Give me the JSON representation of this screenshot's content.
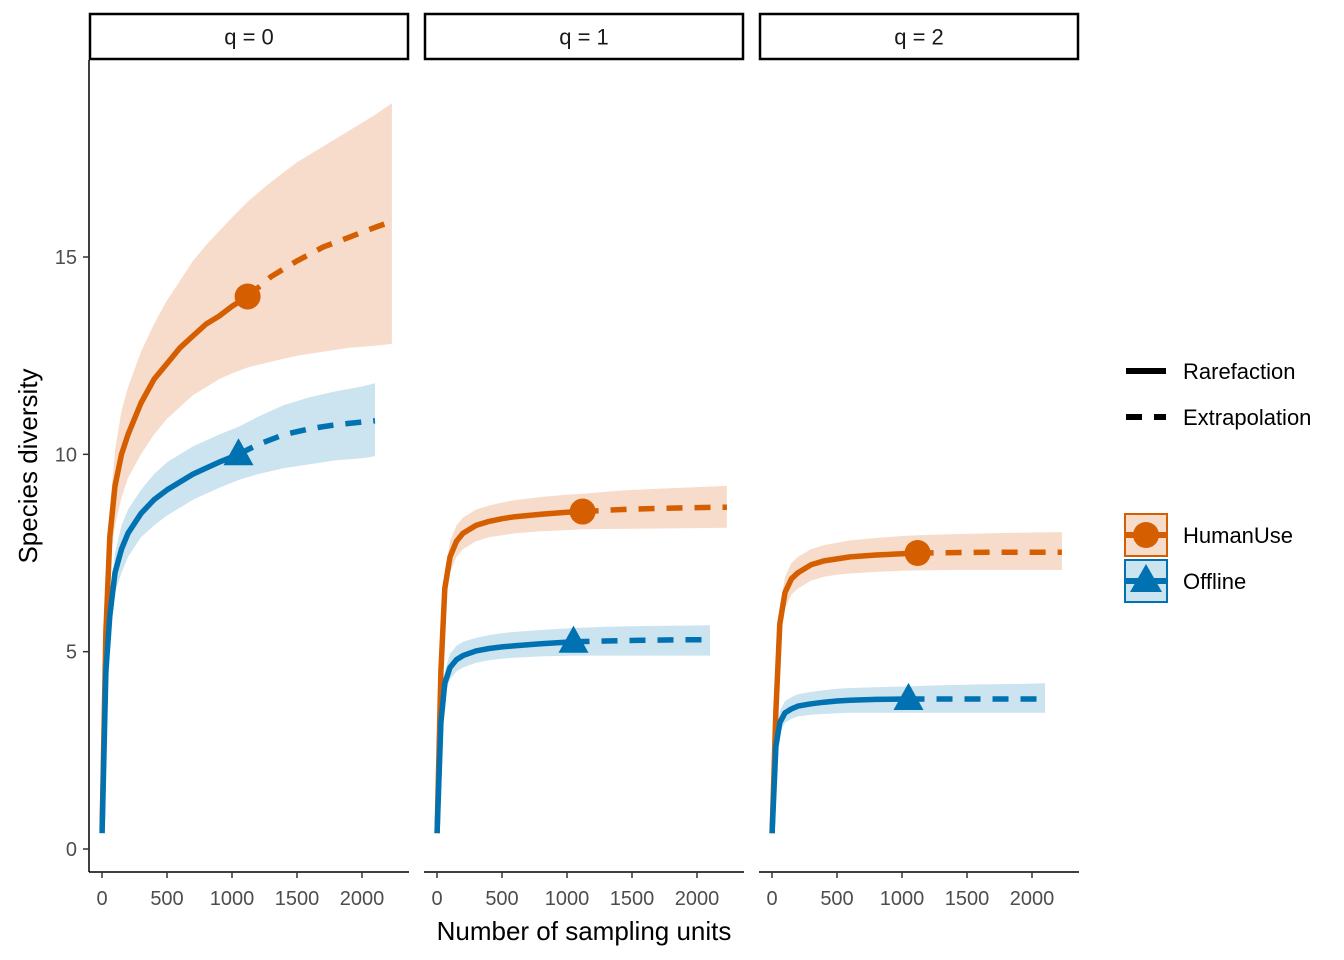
{
  "chart_data": {
    "type": "line",
    "xlabel": "Number of sampling units",
    "ylabel": "Species diversity",
    "xlim": [
      -100,
      2230
    ],
    "ylim": [
      -0.6,
      19.9
    ],
    "x_ticks": [
      0,
      500,
      1000,
      1500,
      2000
    ],
    "y_ticks": [
      0,
      5,
      10,
      15
    ],
    "grid": false,
    "legend_linetype": [
      {
        "label": "Rarefaction",
        "style": "solid"
      },
      {
        "label": "Extrapolation",
        "style": "dashed"
      }
    ],
    "legend_group": [
      {
        "label": "HumanUse",
        "color": "#D55E00",
        "marker": "circle"
      },
      {
        "label": "Offline",
        "color": "#0072B2",
        "marker": "triangle"
      }
    ],
    "colors": {
      "HumanUse": "#D55E00",
      "Offline": "#0072B2"
    },
    "ribbon_colors": {
      "HumanUse": "#F7DCCB",
      "Offline": "#CCE3F0"
    },
    "panels": [
      {
        "title": "q = 0",
        "series": [
          {
            "group": "HumanUse",
            "observed": {
              "x": 1120,
              "y": 14.0
            },
            "rarefaction": {
              "x": [
                1,
                30,
                60,
                100,
                150,
                200,
                300,
                400,
                500,
                600,
                700,
                800,
                900,
                1000,
                1120
              ],
              "y": [
                0.5,
                5.5,
                7.9,
                9.2,
                10.0,
                10.5,
                11.3,
                11.9,
                12.3,
                12.7,
                13.0,
                13.3,
                13.5,
                13.75,
                14.0
              ]
            },
            "extrapolation": {
              "x": [
                1120,
                1300,
                1500,
                1700,
                1900,
                2100,
                2230
              ],
              "y": [
                14.0,
                14.5,
                14.9,
                15.25,
                15.5,
                15.75,
                15.9
              ]
            },
            "ribbon": {
              "x": [
                1,
                30,
                60,
                100,
                150,
                200,
                300,
                400,
                500,
                600,
                700,
                800,
                900,
                1000,
                1120,
                1300,
                1500,
                1700,
                1900,
                2100,
                2230
              ],
              "lower": [
                0.5,
                5.0,
                7.2,
                8.2,
                8.9,
                9.4,
                10.0,
                10.5,
                10.9,
                11.2,
                11.5,
                11.7,
                11.9,
                12.05,
                12.2,
                12.35,
                12.5,
                12.6,
                12.7,
                12.75,
                12.8
              ],
              "upper": [
                0.5,
                6.0,
                8.6,
                10.1,
                11.1,
                11.7,
                12.6,
                13.3,
                13.9,
                14.4,
                14.9,
                15.3,
                15.65,
                16.0,
                16.4,
                16.9,
                17.4,
                17.8,
                18.2,
                18.6,
                18.9
              ]
            }
          },
          {
            "group": "Offline",
            "observed": {
              "x": 1050,
              "y": 10.0
            },
            "rarefaction": {
              "x": [
                1,
                30,
                60,
                100,
                150,
                200,
                300,
                400,
                500,
                600,
                700,
                800,
                900,
                1050
              ],
              "y": [
                0.4,
                4.5,
                5.9,
                7.0,
                7.6,
                8.0,
                8.5,
                8.85,
                9.1,
                9.3,
                9.5,
                9.65,
                9.8,
                10.0
              ]
            },
            "extrapolation": {
              "x": [
                1050,
                1200,
                1400,
                1600,
                1800,
                2000,
                2100
              ],
              "y": [
                10.0,
                10.25,
                10.5,
                10.65,
                10.75,
                10.82,
                10.85
              ]
            },
            "ribbon": {
              "x": [
                1,
                30,
                60,
                100,
                150,
                200,
                300,
                400,
                500,
                600,
                700,
                800,
                900,
                1050,
                1200,
                1400,
                1600,
                1800,
                2000,
                2100
              ],
              "lower": [
                0.4,
                4.2,
                5.5,
                6.5,
                7.0,
                7.4,
                7.9,
                8.2,
                8.45,
                8.65,
                8.85,
                9.0,
                9.15,
                9.35,
                9.5,
                9.65,
                9.75,
                9.85,
                9.9,
                9.95
              ],
              "upper": [
                0.4,
                4.8,
                6.3,
                7.5,
                8.2,
                8.6,
                9.1,
                9.5,
                9.8,
                10.0,
                10.2,
                10.35,
                10.5,
                10.7,
                10.95,
                11.25,
                11.45,
                11.6,
                11.72,
                11.8
              ]
            }
          }
        ]
      },
      {
        "title": "q = 1",
        "series": [
          {
            "group": "HumanUse",
            "observed": {
              "x": 1120,
              "y": 8.55
            },
            "rarefaction": {
              "x": [
                1,
                30,
                60,
                100,
                150,
                200,
                300,
                400,
                500,
                600,
                800,
                1000,
                1120
              ],
              "y": [
                0.4,
                4.5,
                6.6,
                7.4,
                7.8,
                8.0,
                8.2,
                8.3,
                8.37,
                8.42,
                8.48,
                8.53,
                8.55
              ]
            },
            "extrapolation": {
              "x": [
                1120,
                1400,
                1700,
                2000,
                2230
              ],
              "y": [
                8.55,
                8.6,
                8.63,
                8.65,
                8.66
              ]
            },
            "ribbon": {
              "x": [
                1,
                30,
                60,
                100,
                150,
                200,
                300,
                400,
                500,
                600,
                800,
                1000,
                1120,
                1400,
                1700,
                2000,
                2230
              ],
              "lower": [
                0.4,
                4.2,
                6.2,
                7.0,
                7.4,
                7.6,
                7.8,
                7.9,
                7.95,
                8.0,
                8.05,
                8.08,
                8.1,
                8.11,
                8.12,
                8.13,
                8.14
              ],
              "upper": [
                0.4,
                4.8,
                7.0,
                7.8,
                8.2,
                8.4,
                8.6,
                8.7,
                8.78,
                8.84,
                8.92,
                8.98,
                9.0,
                9.08,
                9.13,
                9.17,
                9.2
              ]
            }
          },
          {
            "group": "Offline",
            "observed": {
              "x": 1050,
              "y": 5.25
            },
            "rarefaction": {
              "x": [
                1,
                30,
                60,
                100,
                150,
                200,
                300,
                400,
                500,
                600,
                800,
                1050
              ],
              "y": [
                0.4,
                3.2,
                4.2,
                4.6,
                4.8,
                4.9,
                5.02,
                5.08,
                5.12,
                5.15,
                5.2,
                5.25
              ]
            },
            "extrapolation": {
              "x": [
                1050,
                1300,
                1600,
                1900,
                2100
              ],
              "y": [
                5.25,
                5.27,
                5.29,
                5.3,
                5.3
              ]
            },
            "ribbon": {
              "x": [
                1,
                30,
                60,
                100,
                150,
                200,
                300,
                400,
                500,
                600,
                800,
                1050,
                1300,
                1600,
                1900,
                2100
              ],
              "lower": [
                0.4,
                3.0,
                3.9,
                4.3,
                4.5,
                4.6,
                4.72,
                4.78,
                4.82,
                4.85,
                4.88,
                4.9,
                4.9,
                4.9,
                4.9,
                4.9
              ],
              "upper": [
                0.4,
                3.4,
                4.5,
                4.95,
                5.15,
                5.25,
                5.35,
                5.42,
                5.47,
                5.5,
                5.55,
                5.6,
                5.63,
                5.65,
                5.66,
                5.67
              ]
            }
          }
        ]
      },
      {
        "title": "q = 2",
        "series": [
          {
            "group": "HumanUse",
            "observed": {
              "x": 1120,
              "y": 7.5
            },
            "rarefaction": {
              "x": [
                1,
                30,
                60,
                100,
                150,
                200,
                300,
                400,
                500,
                600,
                800,
                1000,
                1120
              ],
              "y": [
                0.4,
                3.5,
                5.7,
                6.5,
                6.85,
                7.0,
                7.2,
                7.3,
                7.35,
                7.4,
                7.45,
                7.48,
                7.5
              ]
            },
            "extrapolation": {
              "x": [
                1120,
                1400,
                1700,
                2000,
                2230
              ],
              "y": [
                7.5,
                7.51,
                7.52,
                7.52,
                7.52
              ]
            },
            "ribbon": {
              "x": [
                1,
                30,
                60,
                100,
                150,
                200,
                300,
                400,
                500,
                600,
                800,
                1000,
                1120,
                1400,
                1700,
                2000,
                2230
              ],
              "lower": [
                0.4,
                3.2,
                5.3,
                6.1,
                6.45,
                6.6,
                6.8,
                6.9,
                6.95,
                6.98,
                7.02,
                7.05,
                7.06,
                7.07,
                7.07,
                7.07,
                7.07
              ],
              "upper": [
                0.4,
                3.8,
                6.1,
                6.9,
                7.25,
                7.4,
                7.6,
                7.7,
                7.76,
                7.82,
                7.88,
                7.93,
                7.95,
                7.98,
                8.0,
                8.02,
                8.03
              ]
            }
          },
          {
            "group": "Offline",
            "observed": {
              "x": 1050,
              "y": 3.8
            },
            "rarefaction": {
              "x": [
                1,
                30,
                60,
                100,
                150,
                200,
                300,
                400,
                500,
                600,
                800,
                1050
              ],
              "y": [
                0.4,
                2.6,
                3.2,
                3.45,
                3.55,
                3.62,
                3.68,
                3.72,
                3.75,
                3.77,
                3.79,
                3.8
              ]
            },
            "extrapolation": {
              "x": [
                1050,
                1300,
                1600,
                1900,
                2100
              ],
              "y": [
                3.8,
                3.8,
                3.8,
                3.8,
                3.8
              ]
            },
            "ribbon": {
              "x": [
                1,
                30,
                60,
                100,
                150,
                200,
                300,
                400,
                500,
                600,
                800,
                1050,
                1300,
                1600,
                1900,
                2100
              ],
              "lower": [
                0.4,
                2.4,
                2.95,
                3.2,
                3.3,
                3.36,
                3.4,
                3.42,
                3.44,
                3.45,
                3.45,
                3.45,
                3.45,
                3.45,
                3.45,
                3.45
              ],
              "upper": [
                0.4,
                2.8,
                3.5,
                3.75,
                3.85,
                3.92,
                3.98,
                4.02,
                4.06,
                4.08,
                4.1,
                4.12,
                4.15,
                4.17,
                4.18,
                4.2
              ]
            }
          }
        ]
      }
    ]
  }
}
